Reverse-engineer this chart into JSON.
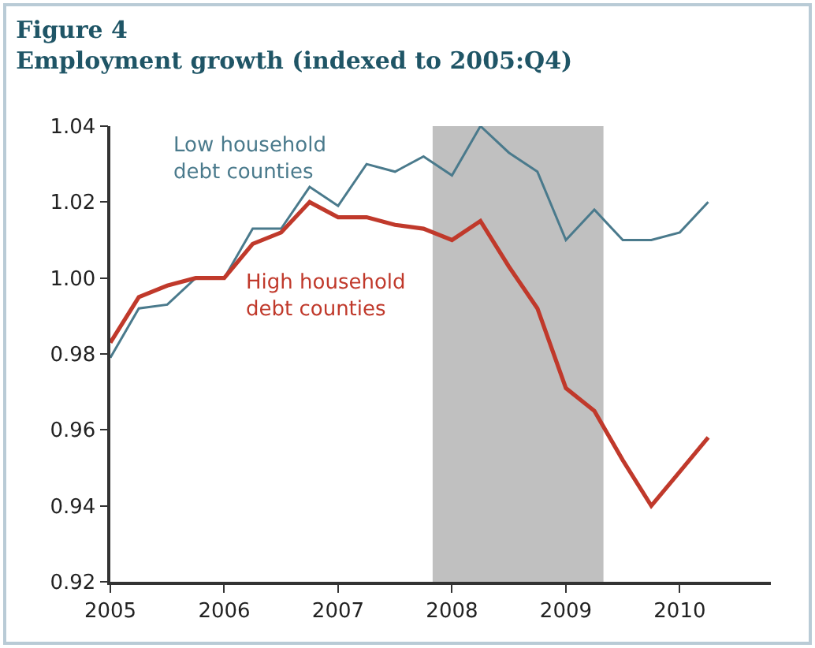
{
  "chart_data": {
    "type": "line",
    "title": "Figure 4",
    "subtitle": "Employment growth (indexed to 2005:Q4)",
    "x": [
      2005,
      2005.25,
      2005.5,
      2005.75,
      2006,
      2006.25,
      2006.5,
      2006.75,
      2007,
      2007.25,
      2007.5,
      2007.75,
      2008,
      2008.25,
      2008.5,
      2008.75,
      2009,
      2009.25,
      2009.5,
      2009.75,
      2010,
      2010.25
    ],
    "series": [
      {
        "name": "Low household debt counties",
        "color": "#4a7a8c",
        "values": [
          0.979,
          0.992,
          0.993,
          1.0,
          1.0,
          1.013,
          1.013,
          1.024,
          1.019,
          1.03,
          1.028,
          1.032,
          1.027,
          1.04,
          1.033,
          1.028,
          1.01,
          1.018,
          1.01,
          1.01,
          1.012,
          1.02
        ]
      },
      {
        "name": "High household debt counties",
        "color": "#c0392b",
        "values": [
          0.983,
          0.995,
          0.998,
          1.0,
          1.0,
          1.009,
          1.012,
          1.02,
          1.016,
          1.016,
          1.014,
          1.013,
          1.01,
          1.015,
          1.003,
          0.992,
          0.971,
          0.965,
          0.952,
          0.94,
          0.949,
          0.958
        ]
      }
    ],
    "xlim": [
      2005,
      2010.8
    ],
    "xticks": [
      2005,
      2006,
      2007,
      2008,
      2009,
      2010
    ],
    "ylim": [
      0.92,
      1.04
    ],
    "yticks": [
      {
        "value": 0.92,
        "label": "0.92"
      },
      {
        "value": 0.94,
        "label": "0.94"
      },
      {
        "value": 0.96,
        "label": "0.96"
      },
      {
        "value": 0.98,
        "label": "0.98"
      },
      {
        "value": 1.0,
        "label": "1.00"
      },
      {
        "value": 1.02,
        "label": "1.02"
      },
      {
        "value": 1.04,
        "label": "1.04"
      }
    ],
    "bands": [
      {
        "axis": "x",
        "from": 2007.83,
        "to": 2009.33,
        "color": "#c0c0c0"
      }
    ],
    "grid": false,
    "legend": false,
    "marker": "none",
    "line_style": "solid"
  }
}
